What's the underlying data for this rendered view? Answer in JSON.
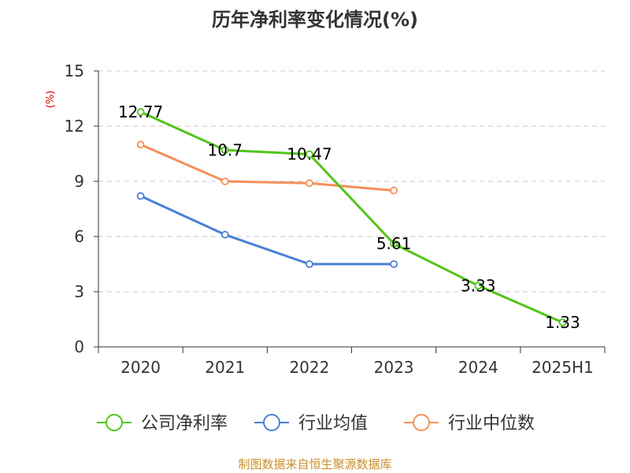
{
  "chart_data": {
    "type": "line",
    "title": "历年净利率变化情况(%)",
    "ylabel": "(%)",
    "xlabel": "",
    "categories": [
      "2020",
      "2021",
      "2022",
      "2023",
      "2024",
      "2025H1"
    ],
    "ylim": [
      0,
      15
    ],
    "yticks": [
      0,
      3,
      6,
      9,
      12,
      15
    ],
    "grid": true,
    "legend_position": "bottom",
    "series": [
      {
        "name": "公司净利率",
        "color": "#52c41a",
        "values": [
          12.77,
          10.7,
          10.47,
          5.61,
          3.33,
          1.33
        ],
        "labels": [
          "12.77",
          "10.7",
          "10.47",
          "5.61",
          "3.33",
          "1.33"
        ]
      },
      {
        "name": "行业均值",
        "color": "#4a7fd6",
        "values": [
          8.2,
          6.1,
          4.5,
          4.5,
          null,
          null
        ]
      },
      {
        "name": "行业中位数",
        "color": "#f59058",
        "values": [
          11.0,
          9.0,
          8.9,
          8.5,
          null,
          null
        ]
      }
    ]
  },
  "footer": {
    "source": "制图数据来自恒生聚源数据库"
  }
}
